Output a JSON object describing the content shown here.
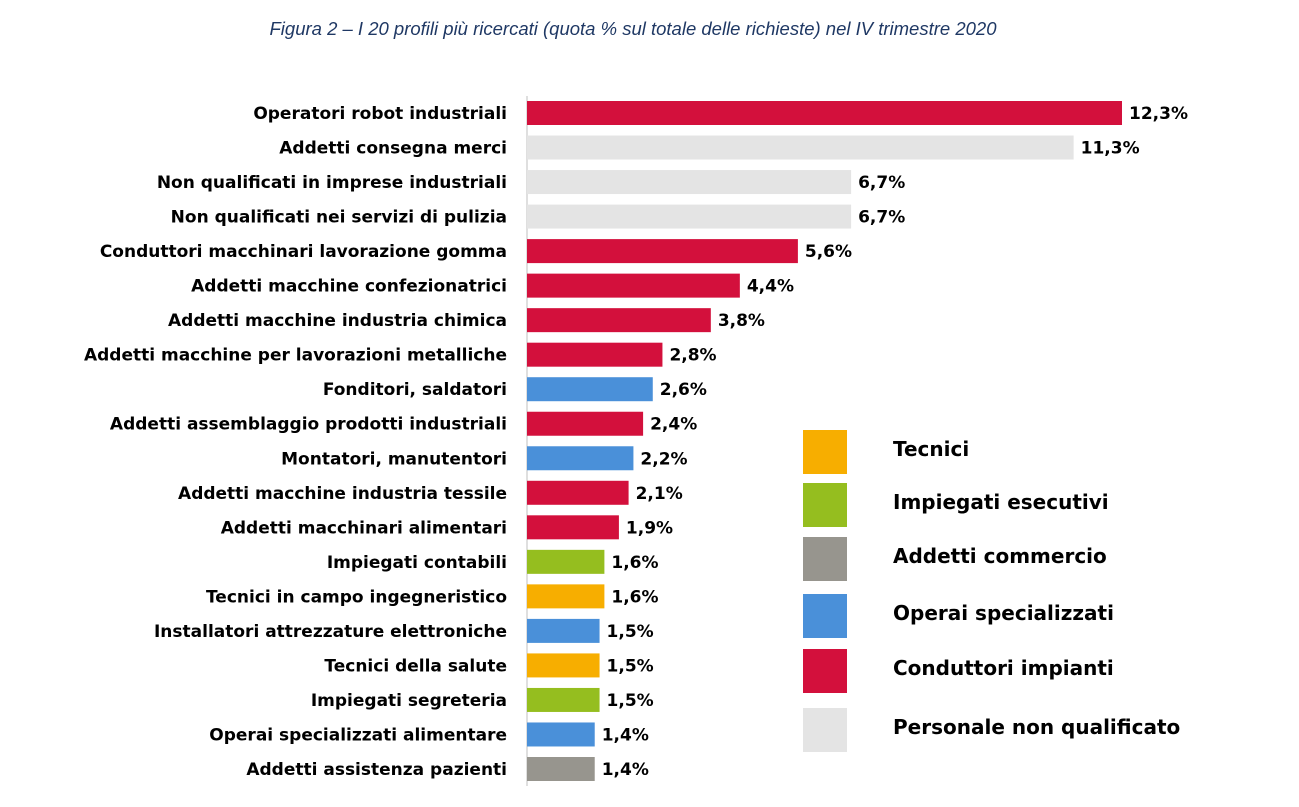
{
  "chart_data": {
    "type": "bar",
    "orientation": "horizontal",
    "title": "Figura 2 – I 20 profili più ricercati (quota % sul totale delle richieste) nel IV trimestre 2020",
    "xlabel": "",
    "ylabel": "",
    "xlim": [
      0,
      12.3
    ],
    "grid": false,
    "legend_position": "bottom-right",
    "categories": [
      "Operatori robot industriali",
      "Addetti consegna merci",
      "Non qualificati in imprese industriali",
      "Non qualificati nei servizi di pulizia",
      "Conduttori macchinari lavorazione gomma",
      "Addetti macchine confezionatrici",
      "Addetti macchine industria chimica",
      "Addetti macchine per lavorazioni metalliche",
      "Fonditori, saldatori",
      "Addetti assemblaggio prodotti industriali",
      "Montatori, manutentori",
      "Addetti macchine industria tessile",
      "Addetti macchinari alimentari",
      "Impiegati contabili",
      "Tecnici in campo ingegneristico",
      "Installatori attrezzature elettroniche",
      "Tecnici della salute",
      "Impiegati segreteria",
      "Operai specializzati alimentare",
      "Addetti assistenza pazienti"
    ],
    "values": [
      12.3,
      11.3,
      6.7,
      6.7,
      5.6,
      4.4,
      3.8,
      2.8,
      2.6,
      2.4,
      2.2,
      2.1,
      1.9,
      1.6,
      1.6,
      1.5,
      1.5,
      1.5,
      1.4,
      1.4
    ],
    "value_labels": [
      "12,3%",
      "11,3%",
      "6,7%",
      "6,7%",
      "5,6%",
      "4,4%",
      "3,8%",
      "2,8%",
      "2,6%",
      "2,4%",
      "2,2%",
      "2,1%",
      "1,9%",
      "1,6%",
      "1,6%",
      "1,5%",
      "1,5%",
      "1,5%",
      "1,4%",
      "1,4%"
    ],
    "groups": [
      4,
      5,
      5,
      5,
      4,
      4,
      4,
      4,
      3,
      4,
      3,
      4,
      4,
      1,
      0,
      3,
      0,
      1,
      3,
      2
    ],
    "legend": [
      {
        "name": "Tecnici",
        "color": "#F7AE00"
      },
      {
        "name": "Impiegati esecutivi",
        "color": "#95BE1F"
      },
      {
        "name": "Addetti commercio",
        "color": "#97958E"
      },
      {
        "name": "Operai specializzati",
        "color": "#4A90D9"
      },
      {
        "name": "Conduttori impianti",
        "color": "#D3103C"
      },
      {
        "name": "Personale non qualificato",
        "color": "#E4E4E4"
      }
    ]
  }
}
